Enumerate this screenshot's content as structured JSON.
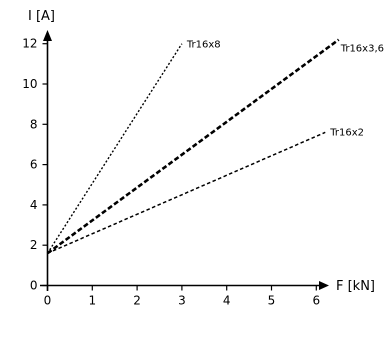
{
  "chart_data": {
    "type": "line",
    "title": "",
    "xlabel": "F [kN]",
    "ylabel": "I [A]",
    "xlim": [
      0,
      6.5
    ],
    "ylim": [
      0,
      12.6
    ],
    "x_ticks": [
      0,
      1,
      2,
      3,
      4,
      5,
      6
    ],
    "y_ticks": [
      0,
      2,
      4,
      6,
      8,
      10,
      12
    ],
    "grid": false,
    "series": [
      {
        "name": "Tr16x8",
        "style": "dotted-thin",
        "x": [
          0,
          3.0
        ],
        "y": [
          1.6,
          12.0
        ]
      },
      {
        "name": "Tr16x3,6",
        "style": "dashed-thick",
        "x": [
          0,
          6.5
        ],
        "y": [
          1.6,
          12.2
        ]
      },
      {
        "name": "Tr16x2",
        "style": "dashed-thin",
        "x": [
          0,
          6.2
        ],
        "y": [
          1.6,
          7.6
        ]
      }
    ]
  }
}
